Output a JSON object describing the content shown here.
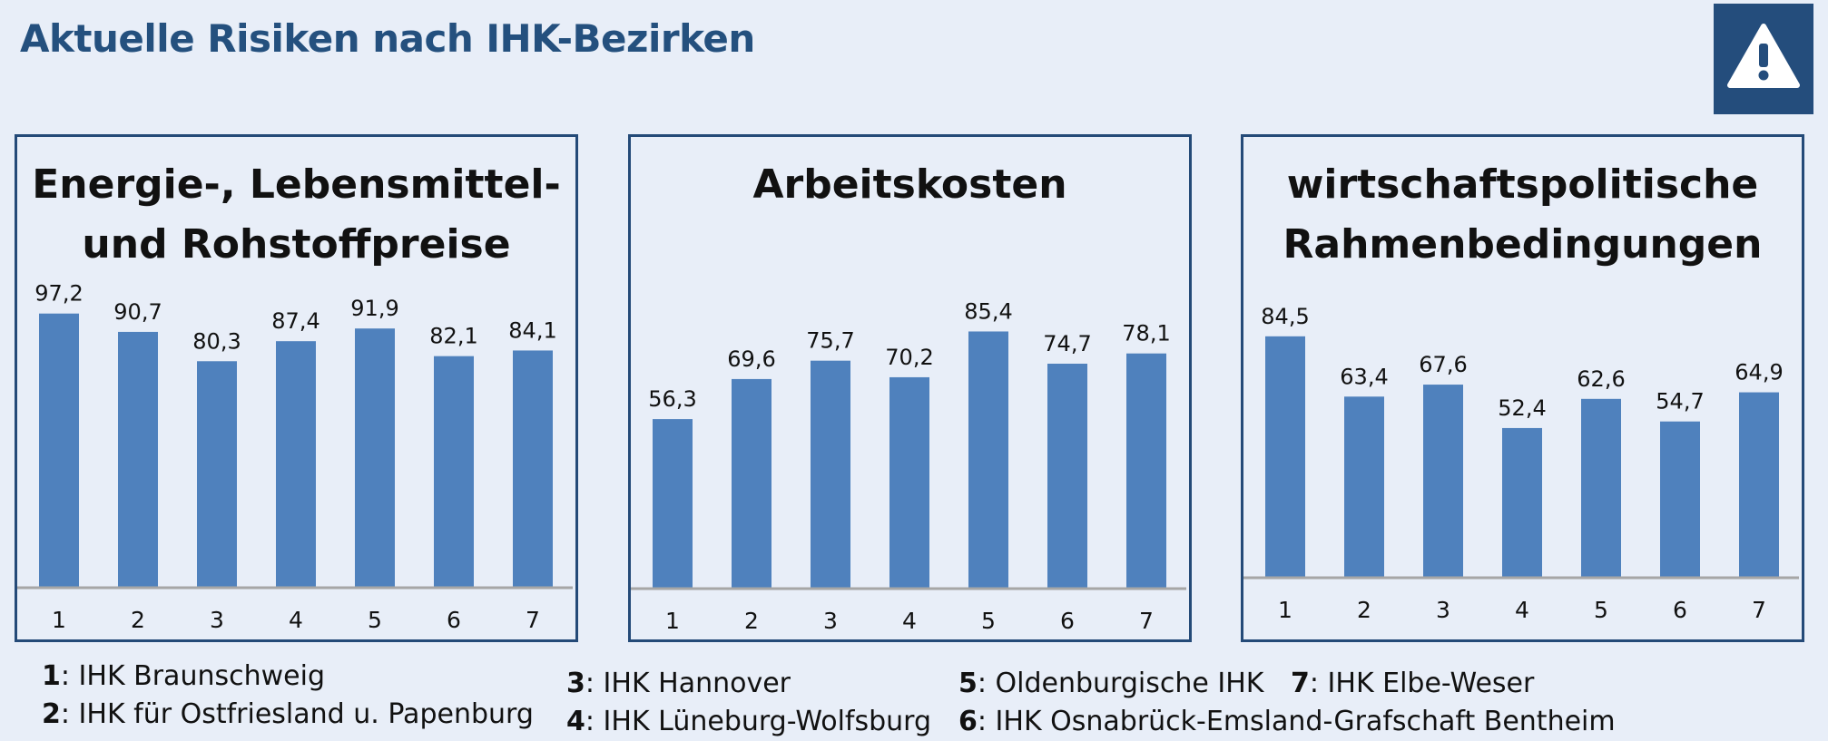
{
  "header": {
    "title": "Aktuelle Risiken nach IHK-Bezirken",
    "icon": "warning-icon"
  },
  "colors": {
    "bar": "#4f81bd",
    "title": "#24507e",
    "frame": "#244a78",
    "icon_bg": "#244d7c",
    "baseline": "#a6a6a6"
  },
  "chart_data": [
    {
      "type": "bar",
      "title": "Energie-, Lebensmittel- und Rohstoffpreise",
      "categories": [
        "1",
        "2",
        "3",
        "4",
        "5",
        "6",
        "7"
      ],
      "values": [
        97.2,
        90.7,
        80.3,
        87.4,
        91.9,
        82.1,
        84.1
      ],
      "value_labels": [
        "97,2",
        "90,7",
        "80,3",
        "87,4",
        "91,9",
        "82,1",
        "84,1"
      ],
      "ylim": [
        0,
        100
      ],
      "grid": false
    },
    {
      "type": "bar",
      "title": "Arbeitskosten",
      "categories": [
        "1",
        "2",
        "3",
        "4",
        "5",
        "6",
        "7"
      ],
      "values": [
        56.3,
        69.6,
        75.7,
        70.2,
        85.4,
        74.7,
        78.1
      ],
      "value_labels": [
        "56,3",
        "69,6",
        "75,7",
        "70,2",
        "85,4",
        "74,7",
        "78,1"
      ],
      "ylim": [
        0,
        100
      ],
      "grid": false
    },
    {
      "type": "bar",
      "title": "wirtschaftspolitische Rahmenbedingungen",
      "categories": [
        "1",
        "2",
        "3",
        "4",
        "5",
        "6",
        "7"
      ],
      "values": [
        84.5,
        63.4,
        67.6,
        52.4,
        62.6,
        54.7,
        64.9
      ],
      "value_labels": [
        "84,5",
        "63,4",
        "67,6",
        "52,4",
        "62,6",
        "54,7",
        "64,9"
      ],
      "ylim": [
        0,
        100
      ],
      "grid": false
    }
  ],
  "legend": [
    {
      "num": "1",
      "name": "IHK Braunschweig"
    },
    {
      "num": "2",
      "name": "IHK für Ostfriesland u. Papenburg"
    },
    {
      "num": "3",
      "name": "IHK Hannover"
    },
    {
      "num": "4",
      "name": "IHK Lüneburg-Wolfsburg"
    },
    {
      "num": "5",
      "name": "Oldenburgische IHK"
    },
    {
      "num": "6",
      "name": "IHK Osnabrück-Emsland-Grafschaft Bentheim"
    },
    {
      "num": "7",
      "name": "IHK Elbe-Weser"
    }
  ]
}
